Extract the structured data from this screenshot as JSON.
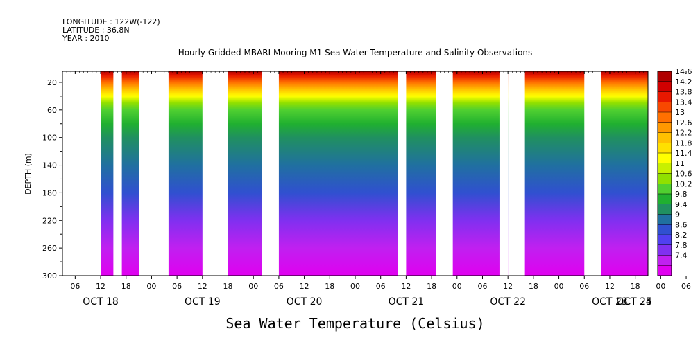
{
  "header": {
    "longitude": "LONGITUDE : 122W(-122)",
    "latitude": "LATITUDE : 36.8N",
    "year": "YEAR : 2010"
  },
  "chart_data": {
    "type": "heatmap",
    "title": "Hourly Gridded MBARI Mooring M1 Sea Water Temperature and Salinity Observations",
    "xlabel": "Sea Water Temperature (Celsius)",
    "ylabel": "DEPTH (m)",
    "x_hours": [
      "06",
      "12",
      "18",
      "00",
      "06",
      "12",
      "18",
      "00",
      "06",
      "12",
      "18",
      "00",
      "06",
      "12",
      "18",
      "00",
      "06",
      "12",
      "18",
      "00",
      "06",
      "12",
      "18",
      "00",
      "06",
      "12",
      "18",
      "00",
      "06",
      "12",
      "18",
      "00"
    ],
    "x_days": [
      "OCT 18",
      "OCT 19",
      "OCT 20",
      "OCT 21",
      "OCT 22",
      "OCT 23",
      "OCT 24",
      "OCT 25"
    ],
    "x_range_hours_since_oct18_00": [
      3,
      141
    ],
    "y_ticks": [
      "20",
      "60",
      "100",
      "140",
      "180",
      "220",
      "260",
      "300"
    ],
    "y_range_m": [
      300,
      4
    ],
    "colorbar_labels": [
      "14.6",
      "14.2",
      "13.8",
      "13.4",
      "13",
      "12.6",
      "12.2",
      "11.8",
      "11.4",
      "11",
      "10.6",
      "10.2",
      "9.8",
      "9.4",
      "9",
      "8.6",
      "8.2",
      "7.8",
      "7.4"
    ],
    "colorbar_range": [
      7.4,
      14.8
    ],
    "colors": [
      "#b00000",
      "#d00000",
      "#e81800",
      "#f84800",
      "#ff7000",
      "#ff9800",
      "#ffc000",
      "#ffe000",
      "#ffff00",
      "#c8f000",
      "#90e000",
      "#50d030",
      "#20b030",
      "#209060",
      "#2070a0",
      "#3050d0",
      "#5040f0",
      "#8030f0",
      "#c020f0",
      "#e000f0"
    ],
    "profile": [
      {
        "depth": 4,
        "temp": 14.6
      },
      {
        "depth": 10,
        "temp": 14.0
      },
      {
        "depth": 20,
        "temp": 13.2
      },
      {
        "depth": 30,
        "temp": 12.3
      },
      {
        "depth": 40,
        "temp": 11.6
      },
      {
        "depth": 50,
        "temp": 11.0
      },
      {
        "depth": 60,
        "temp": 10.6
      },
      {
        "depth": 80,
        "temp": 10.1
      },
      {
        "depth": 100,
        "temp": 9.8
      },
      {
        "depth": 140,
        "temp": 9.3
      },
      {
        "depth": 180,
        "temp": 8.9
      },
      {
        "depth": 220,
        "temp": 8.5
      },
      {
        "depth": 260,
        "temp": 8.0
      },
      {
        "depth": 300,
        "temp": 7.5
      }
    ],
    "missing_hours": [
      [
        3,
        12
      ],
      [
        15,
        17
      ],
      [
        21,
        28
      ],
      [
        36,
        42
      ],
      [
        50,
        54
      ],
      [
        82,
        84
      ],
      [
        91,
        95
      ],
      [
        106,
        108
      ],
      [
        108,
        112
      ],
      [
        126,
        130
      ]
    ]
  }
}
